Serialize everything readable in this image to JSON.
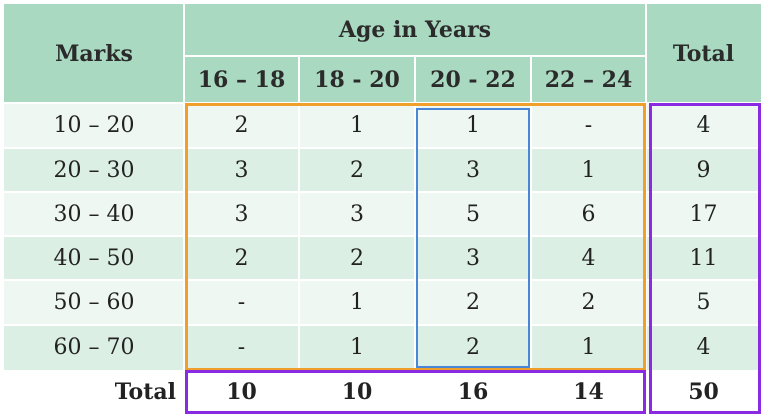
{
  "header": {
    "marks": "Marks",
    "group": "Age in Years",
    "total": "Total",
    "age_ranges": [
      "16 – 18",
      "18 - 20",
      "20 - 22",
      "22 – 24"
    ]
  },
  "rows": [
    {
      "marks": "10 – 20",
      "values": [
        "2",
        "1",
        "1",
        "-"
      ],
      "total": "4"
    },
    {
      "marks": "20 – 30",
      "values": [
        "3",
        "2",
        "3",
        "1"
      ],
      "total": "9"
    },
    {
      "marks": "30 – 40",
      "values": [
        "3",
        "3",
        "5",
        "6"
      ],
      "total": "17"
    },
    {
      "marks": "40 – 50",
      "values": [
        "2",
        "2",
        "3",
        "4"
      ],
      "total": "11"
    },
    {
      "marks": "50 – 60",
      "values": [
        "-",
        "1",
        "2",
        "2"
      ],
      "total": "5"
    },
    {
      "marks": "60 – 70",
      "values": [
        "-",
        "1",
        "2",
        "1"
      ],
      "total": "4"
    }
  ],
  "totals": {
    "label": "Total",
    "values": [
      "10",
      "10",
      "16",
      "14"
    ],
    "grand": "50"
  },
  "colors": {
    "header_bg": "#a9d9c0",
    "row_light": "#eef7f2",
    "row_dark": "#dcefe4",
    "orange_box": "#f0a02a",
    "blue_box": "#4a86d8",
    "purple_box": "#8a2be2"
  }
}
